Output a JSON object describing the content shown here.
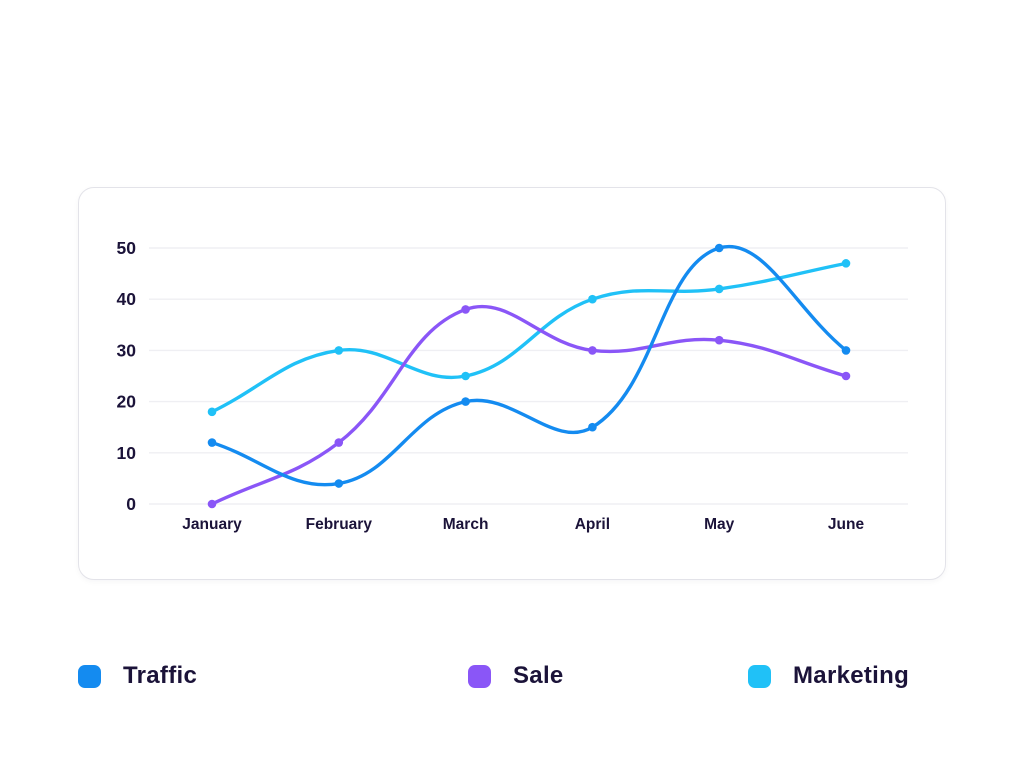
{
  "chart_data": {
    "type": "line",
    "title": "",
    "xlabel": "",
    "ylabel": "",
    "categories": [
      "January",
      "February",
      "March",
      "April",
      "May",
      "June"
    ],
    "series": [
      {
        "name": "Traffic",
        "color": "#148bf0",
        "values": [
          12,
          4,
          20,
          15,
          50,
          30
        ]
      },
      {
        "name": "Sale",
        "color": "#8a56f7",
        "values": [
          0,
          12,
          38,
          30,
          32,
          25
        ]
      },
      {
        "name": "Marketing",
        "color": "#20c1f7",
        "values": [
          18,
          30,
          25,
          40,
          42,
          47
        ]
      }
    ],
    "y_ticks": [
      0,
      10,
      20,
      30,
      40,
      50
    ],
    "ylim": [
      0,
      50
    ],
    "grid": true,
    "legend_position": "bottom",
    "line_style": "smooth",
    "markers": true
  },
  "colors": {
    "axis_text": "#1b1339",
    "gridline": "#efeff3",
    "card_background": "#ffffff",
    "card_border": "#e3e3e9",
    "page_background": "#ffffff"
  }
}
